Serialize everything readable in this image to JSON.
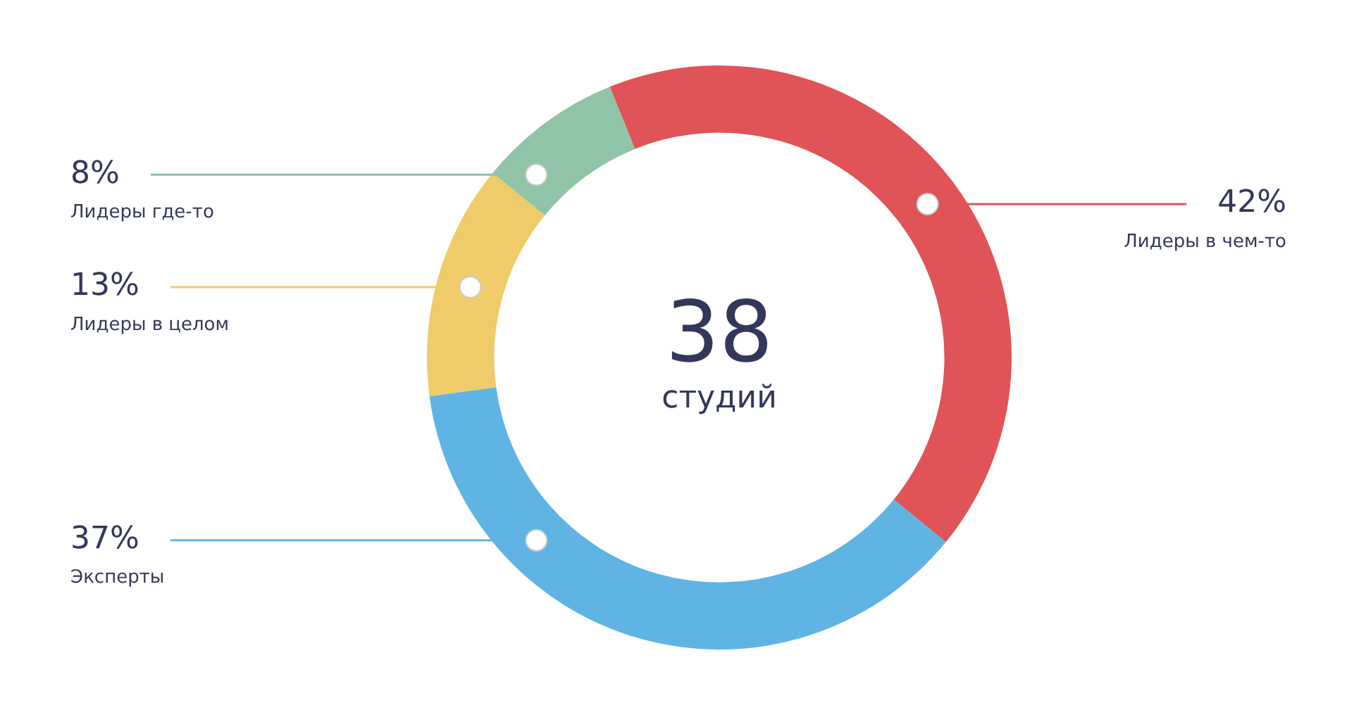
{
  "chart_data": {
    "type": "donut",
    "categories": [
      "Лидеры в чем-то",
      "Эксперты",
      "Лидеры в целом",
      "Лидеры где-то"
    ],
    "values": [
      42,
      37,
      13,
      8
    ],
    "value_labels": [
      "42%",
      "37%",
      "13%",
      "8%"
    ],
    "colors": [
      "#e05357",
      "#5fb4e4",
      "#f0cb6a",
      "#8fc4a7"
    ],
    "annotations": [
      "38",
      "студий"
    ],
    "legend": false
  }
}
